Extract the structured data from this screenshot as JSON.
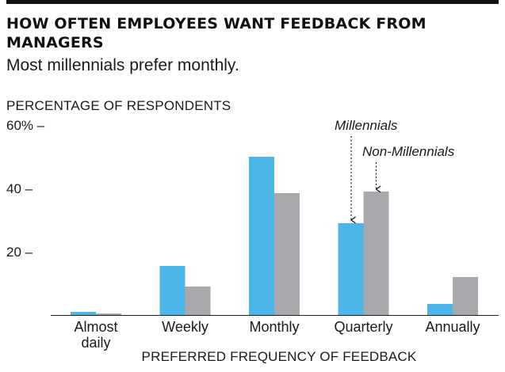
{
  "header": {
    "title": "HOW OFTEN EMPLOYEES WANT FEEDBACK FROM MANAGERS",
    "subtitle": "Most millennials prefer monthly."
  },
  "colors": {
    "millennials": "#4db6e8",
    "non_millennials": "#a7a9ac",
    "axis": "#1a1a1a"
  },
  "chart_data": {
    "type": "bar",
    "title": "HOW OFTEN EMPLOYEES WANT FEEDBACK FROM MANAGERS",
    "subtitle": "Most millennials prefer monthly.",
    "ylabel": "PERCENTAGE OF RESPONDENTS",
    "xlabel": "PREFERRED FREQUENCY OF FEEDBACK",
    "ylim": [
      0,
      60
    ],
    "yticks": [
      {
        "value": 60,
        "label": "60% –"
      },
      {
        "value": 40,
        "label": "40 –"
      },
      {
        "value": 20,
        "label": "20 –"
      }
    ],
    "categories": [
      [
        "Almost",
        "daily"
      ],
      [
        "Weekly"
      ],
      [
        "Monthly"
      ],
      [
        "Quarterly"
      ],
      [
        "Annually"
      ]
    ],
    "series": [
      {
        "name": "Millennials",
        "values": [
          1,
          15.5,
          50,
          29,
          3.5
        ]
      },
      {
        "name": "Non-Millennials",
        "values": [
          0.5,
          9,
          38.5,
          39,
          12
        ]
      }
    ],
    "annotations": [
      "Millennials",
      "Non-Millennials"
    ],
    "grid": false
  }
}
